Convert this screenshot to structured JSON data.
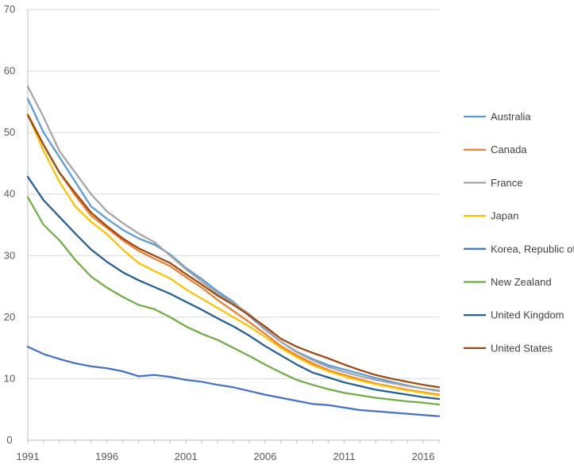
{
  "chart_data": {
    "type": "line",
    "title": "",
    "xlabel": "",
    "ylabel": "",
    "x": [
      1991,
      1992,
      1993,
      1994,
      1995,
      1996,
      1997,
      1998,
      1999,
      2000,
      2001,
      2002,
      2003,
      2004,
      2005,
      2006,
      2007,
      2008,
      2009,
      2010,
      2011,
      2012,
      2013,
      2014,
      2015,
      2016,
      2017
    ],
    "xticks": [
      1991,
      1996,
      2001,
      2006,
      2011,
      2016
    ],
    "ylim": [
      0,
      70
    ],
    "yticks": [
      0,
      10,
      20,
      30,
      40,
      50,
      60,
      70
    ],
    "grid": "horizontal",
    "legend": "right",
    "series": [
      {
        "name": "Australia",
        "color": "#5b9bd5",
        "values": [
          55.5,
          50.0,
          46.0,
          42.0,
          38.0,
          36.0,
          34.2,
          32.8,
          31.8,
          30.2,
          28.0,
          26.2,
          24.2,
          22.5,
          20.2,
          18.0,
          16.0,
          14.4,
          13.2,
          12.2,
          11.5,
          10.8,
          10.1,
          9.5,
          8.9,
          8.4,
          8.0
        ]
      },
      {
        "name": "Canada",
        "color": "#ed7d31",
        "values": [
          53.0,
          48.0,
          43.5,
          39.8,
          36.5,
          34.5,
          32.5,
          30.8,
          29.5,
          28.3,
          26.5,
          24.8,
          22.8,
          21.0,
          19.2,
          17.3,
          15.3,
          13.8,
          12.5,
          11.4,
          10.6,
          9.9,
          9.2,
          8.7,
          8.2,
          7.8,
          7.4
        ]
      },
      {
        "name": "France",
        "color": "#a5a5a5",
        "values": [
          57.5,
          52.5,
          47.0,
          43.5,
          40.0,
          37.2,
          35.3,
          33.6,
          32.2,
          30.0,
          27.8,
          25.8,
          23.8,
          22.3,
          20.5,
          18.2,
          16.0,
          14.3,
          13.0,
          11.9,
          11.1,
          10.4,
          9.8,
          9.3,
          8.8,
          8.4,
          8.1
        ]
      },
      {
        "name": "Japan",
        "color": "#ffc000",
        "values": [
          53.0,
          47.0,
          42.0,
          38.0,
          35.5,
          33.5,
          31.0,
          28.8,
          27.5,
          26.3,
          24.5,
          23.0,
          21.5,
          20.0,
          18.5,
          16.8,
          15.0,
          13.5,
          12.2,
          11.2,
          10.4,
          9.7,
          9.1,
          8.6,
          8.1,
          7.7,
          7.3
        ]
      },
      {
        "name": "Korea, Republic of",
        "color": "#4472c4",
        "values": [
          15.2,
          14.0,
          13.2,
          12.5,
          12.0,
          11.7,
          11.2,
          10.4,
          10.6,
          10.3,
          9.8,
          9.5,
          9.0,
          8.6,
          8.0,
          7.4,
          6.9,
          6.4,
          5.9,
          5.7,
          5.3,
          4.9,
          4.7,
          4.5,
          4.3,
          4.1,
          3.9
        ]
      },
      {
        "name": "New Zealand",
        "color": "#70ad47",
        "values": [
          39.5,
          35.0,
          32.5,
          29.3,
          26.6,
          24.8,
          23.3,
          22.0,
          21.3,
          20.0,
          18.5,
          17.3,
          16.3,
          15.0,
          13.7,
          12.3,
          11.0,
          9.8,
          9.0,
          8.3,
          7.7,
          7.3,
          6.9,
          6.6,
          6.3,
          6.1,
          5.8
        ]
      },
      {
        "name": "United Kingdom",
        "color": "#255e91",
        "values": [
          42.8,
          39.0,
          36.3,
          33.6,
          31.0,
          29.0,
          27.3,
          26.0,
          24.9,
          23.8,
          22.5,
          21.2,
          19.8,
          18.5,
          17.0,
          15.3,
          13.8,
          12.3,
          11.0,
          10.2,
          9.4,
          8.8,
          8.2,
          7.8,
          7.4,
          7.0,
          6.7
        ]
      },
      {
        "name": "United States",
        "color": "#9e480e",
        "values": [
          52.8,
          48.0,
          43.5,
          40.2,
          37.0,
          34.8,
          32.8,
          31.2,
          30.0,
          28.8,
          27.0,
          25.3,
          23.5,
          22.0,
          20.3,
          18.5,
          16.5,
          15.2,
          14.2,
          13.3,
          12.3,
          11.4,
          10.6,
          10.0,
          9.5,
          9.0,
          8.6
        ]
      }
    ]
  }
}
